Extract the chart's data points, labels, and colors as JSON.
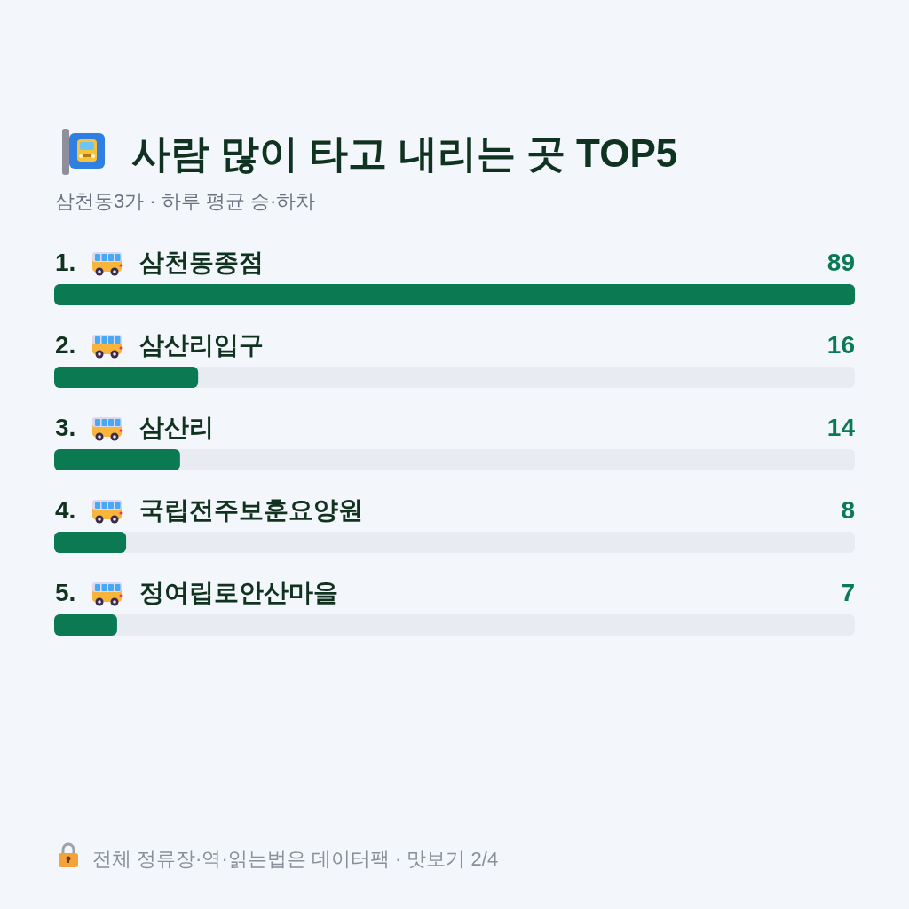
{
  "chart_data": {
    "type": "bar",
    "orientation": "horizontal",
    "title": "사람 많이 타고 내리는 곳 TOP5",
    "subtitle": "삼천동3가 · 하루 평균 승·하차",
    "categories": [
      "1. 삼천동종점",
      "2. 삼산리입구",
      "3. 삼산리",
      "4. 국립전주보훈요양원",
      "5. 정여립로안산마을"
    ],
    "values": [
      89,
      16,
      14,
      8,
      7
    ],
    "color": "#0b7a53",
    "xlim": [
      0,
      89
    ],
    "data_labels": true,
    "annotations": [
      "전체 정류장·역·읽는법은 데이터팩 · 맛보기 2/4"
    ]
  }
}
